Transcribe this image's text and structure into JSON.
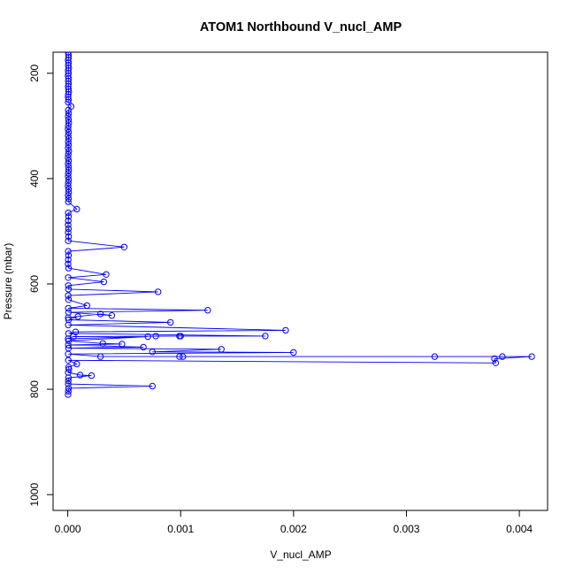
{
  "chart_data": {
    "type": "scatter",
    "title": "ATOM1 Northbound V_nucl_AMP",
    "xlabel": "V_nucl_AMP",
    "ylabel": "Pressure (mbar)",
    "xlim": [
      -0.00013,
      0.00425
    ],
    "ylim": [
      1030,
      160
    ],
    "y_reversed": true,
    "grid": false,
    "legend": "none",
    "x_ticks": [
      0,
      0.001,
      0.002,
      0.003,
      0.004
    ],
    "x_tick_labels": [
      "0.000",
      "0.001",
      "0.002",
      "0.003",
      "0.004"
    ],
    "y_ticks": [
      200,
      400,
      600,
      800,
      1000
    ],
    "y_tick_labels": [
      "200",
      "400",
      "600",
      "800",
      "1000"
    ],
    "series": [
      {
        "color": "#0000ff",
        "marker": "open-circle",
        "line": true,
        "points": [
          [
            4e-06,
            160
          ],
          [
            6e-06,
            165
          ],
          [
            8e-06,
            170
          ],
          [
            3e-06,
            175
          ],
          [
            7e-06,
            180
          ],
          [
            5e-06,
            185
          ],
          [
            9e-06,
            190
          ],
          [
            4e-06,
            195
          ],
          [
            6e-06,
            200
          ],
          [
            3e-06,
            205
          ],
          [
            8e-06,
            210
          ],
          [
            5e-06,
            215
          ],
          [
            7e-06,
            220
          ],
          [
            4e-06,
            225
          ],
          [
            6e-06,
            230
          ],
          [
            9e-06,
            235
          ],
          [
            5e-06,
            240
          ],
          [
            3e-06,
            245
          ],
          [
            7e-06,
            250
          ],
          [
            4e-06,
            255
          ],
          [
            3e-05,
            263
          ],
          [
            5e-06,
            270
          ],
          [
            8e-06,
            276
          ],
          [
            4e-06,
            282
          ],
          [
            6e-06,
            288
          ],
          [
            9e-06,
            294
          ],
          [
            5e-06,
            300
          ],
          [
            3e-06,
            306
          ],
          [
            7e-06,
            312
          ],
          [
            4e-06,
            318
          ],
          [
            8e-06,
            324
          ],
          [
            5e-06,
            330
          ],
          [
            6e-06,
            336
          ],
          [
            4e-06,
            342
          ],
          [
            9e-06,
            348
          ],
          [
            5e-06,
            354
          ],
          [
            3e-06,
            360
          ],
          [
            7e-06,
            366
          ],
          [
            4e-06,
            372
          ],
          [
            6e-06,
            378
          ],
          [
            8e-06,
            384
          ],
          [
            5e-06,
            390
          ],
          [
            4e-06,
            396
          ],
          [
            7e-06,
            402
          ],
          [
            5e-06,
            408
          ],
          [
            3e-06,
            414
          ],
          [
            6e-06,
            420
          ],
          [
            8e-06,
            426
          ],
          [
            4e-06,
            432
          ],
          [
            6e-06,
            438
          ],
          [
            5e-06,
            444
          ],
          [
            8e-05,
            458
          ],
          [
            4e-06,
            465
          ],
          [
            7e-06,
            472
          ],
          [
            5e-06,
            480
          ],
          [
            3e-06,
            488
          ],
          [
            6e-06,
            495
          ],
          [
            4e-06,
            502
          ],
          [
            8e-06,
            510
          ],
          [
            5e-06,
            518
          ],
          [
            0.0005,
            530
          ],
          [
            4e-06,
            538
          ],
          [
            6e-06,
            546
          ],
          [
            5e-06,
            554
          ],
          [
            3e-06,
            562
          ],
          [
            7e-06,
            570
          ],
          [
            0.00034,
            582
          ],
          [
            4e-06,
            588
          ],
          [
            0.00032,
            596
          ],
          [
            5e-06,
            603
          ],
          [
            6e-06,
            610
          ],
          [
            0.0008,
            615
          ],
          [
            4e-06,
            622
          ],
          [
            7e-06,
            630
          ],
          [
            0.00017,
            641
          ],
          [
            5e-06,
            646
          ],
          [
            0.00124,
            650
          ],
          [
            6e-06,
            654
          ],
          [
            0.00039,
            660
          ],
          [
            0.00029,
            657
          ],
          [
            4e-06,
            664
          ],
          [
            9e-05,
            662
          ],
          [
            7e-06,
            668
          ],
          [
            0.00091,
            673
          ],
          [
            5e-06,
            678
          ],
          [
            0.00193,
            688
          ],
          [
            7e-05,
            691
          ],
          [
            6e-06,
            694
          ],
          [
            0.00175,
            699
          ],
          [
            0.00078,
            699
          ],
          [
            0.00099,
            699
          ],
          [
            0.001,
            699
          ],
          [
            5e-05,
            700
          ],
          [
            4e-06,
            704
          ],
          [
            0.00071,
            700
          ],
          [
            7e-06,
            708
          ],
          [
            0.00031,
            713
          ],
          [
            0.00048,
            714
          ],
          [
            5e-06,
            716
          ],
          [
            0.00067,
            720
          ],
          [
            6e-06,
            722
          ],
          [
            0.00136,
            724
          ],
          [
            0.00075,
            729
          ],
          [
            0.002,
            730
          ],
          [
            4e-06,
            733
          ],
          [
            0.00029,
            738
          ],
          [
            0.00099,
            738
          ],
          [
            0.00102,
            738
          ],
          [
            0.00325,
            738
          ],
          [
            0.00385,
            738
          ],
          [
            0.00411,
            738
          ],
          [
            0.00378,
            742
          ],
          [
            0.00379,
            750
          ],
          [
            5e-06,
            745
          ],
          [
            8e-05,
            752
          ],
          [
            7e-06,
            758
          ],
          [
            1e-05,
            762
          ],
          [
            4e-06,
            768
          ],
          [
            0.00011,
            773
          ],
          [
            0.00021,
            774
          ],
          [
            6e-06,
            778
          ],
          [
            5e-06,
            784
          ],
          [
            4e-06,
            790
          ],
          [
            0.00075,
            794
          ],
          [
            7e-06,
            798
          ],
          [
            5e-06,
            804
          ],
          [
            3e-06,
            810
          ]
        ]
      }
    ]
  }
}
